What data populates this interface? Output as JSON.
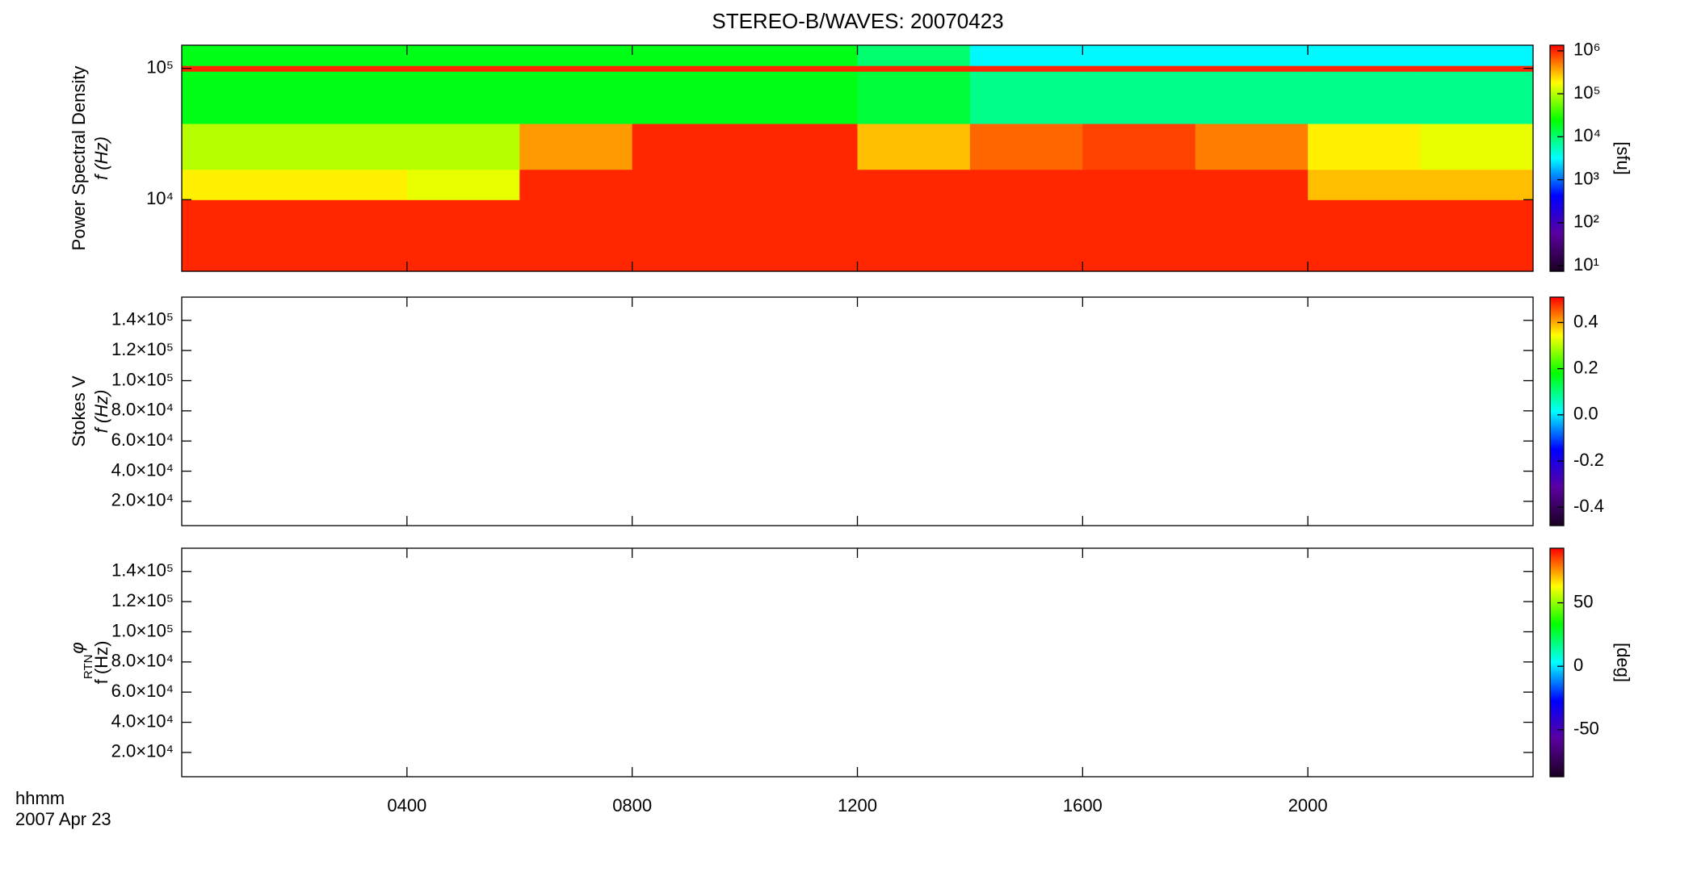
{
  "chart_data": [
    {
      "type": "heatmap",
      "title": "STEREO-B/WAVES: 20070423",
      "ylabel": [
        "Power Spectral Density",
        "f (Hz)"
      ],
      "ylog": true,
      "ylim": [
        2850,
        150000
      ],
      "yticks": [
        {
          "value": 10000,
          "label": "10⁴"
        },
        {
          "value": 100000,
          "label": "10⁵"
        }
      ],
      "x_edges": [
        0,
        2,
        4,
        6,
        8,
        10,
        12,
        14,
        16,
        18,
        20,
        22,
        24
      ],
      "y_edges": [
        2850,
        10000,
        17000,
        38000,
        95000,
        105000,
        150000
      ],
      "z": [
        [
          1000000,
          1000000,
          1000000,
          1000000,
          1000000,
          1000000,
          1000000,
          1000000,
          1000000,
          1000000,
          1000000,
          1000000
        ],
        [
          200000,
          200000,
          150000,
          1000000,
          1000000,
          1000000,
          1000000,
          1000000,
          1000000,
          1000000,
          300000,
          300000
        ],
        [
          100000,
          100000,
          100000,
          400000,
          1000000,
          1000000,
          300000,
          600000,
          800000,
          500000,
          200000,
          150000
        ],
        [
          20000,
          20000,
          20000,
          20000,
          20000,
          20000,
          15000,
          8000,
          8000,
          8000,
          8000,
          8000
        ],
        [
          1000000,
          1000000,
          1000000,
          1000000,
          1000000,
          1000000,
          1000000,
          1000000,
          1000000,
          1000000,
          1000000,
          1000000
        ],
        [
          20000,
          20000,
          20000,
          20000,
          20000,
          20000,
          10000,
          3000,
          3000,
          3000,
          3000,
          3000
        ]
      ],
      "colorscale": [
        "#1a0020",
        "#5a00a0",
        "#0000ff",
        "#00ffff",
        "#00ff00",
        "#ffff00",
        "#ff0000"
      ],
      "clog": true,
      "clim": [
        7.4,
        1350000
      ],
      "cticks": [
        {
          "value": 10,
          "label": "10¹"
        },
        {
          "value": 100,
          "label": "10²"
        },
        {
          "value": 1000,
          "label": "10³"
        },
        {
          "value": 10000,
          "label": "10⁴"
        },
        {
          "value": 100000,
          "label": "10⁵"
        },
        {
          "value": 1000000,
          "label": "10⁶"
        }
      ],
      "clabel": "[sfu]"
    },
    {
      "type": "heatmap",
      "ylabel": [
        "Stokes V",
        "f (Hz)"
      ],
      "ylim": [
        3900,
        155400
      ],
      "yticks": [
        {
          "value": 20000,
          "label": "2.0×10⁴"
        },
        {
          "value": 40000,
          "label": "4.0×10⁴"
        },
        {
          "value": 60000,
          "label": "6.0×10⁴"
        },
        {
          "value": 80000,
          "label": "8.0×10⁴"
        },
        {
          "value": 100000,
          "label": "1.0×10⁵"
        },
        {
          "value": 120000,
          "label": "1.2×10⁵"
        },
        {
          "value": 140000,
          "label": "1.4×10⁵"
        }
      ],
      "colorscale": [
        "#1a0020",
        "#5a00a0",
        "#0000ff",
        "#00ffff",
        "#00ff00",
        "#ffff00",
        "#ff0000"
      ],
      "clim": [
        -0.48,
        0.51
      ],
      "cticks": [
        -0.4,
        -0.2,
        {
          "value": 0,
          "label": "0.0"
        },
        0.2,
        0.4
      ]
    },
    {
      "type": "heatmap",
      "ylabel": [
        "φ",
        "RTN",
        "f (Hz)"
      ],
      "ylim": [
        3900,
        155400
      ],
      "yticks": [
        {
          "value": 20000,
          "label": "2.0×10⁴"
        },
        {
          "value": 40000,
          "label": "4.0×10⁴"
        },
        {
          "value": 60000,
          "label": "6.0×10⁴"
        },
        {
          "value": 80000,
          "label": "8.0×10⁴"
        },
        {
          "value": 100000,
          "label": "1.0×10⁵"
        },
        {
          "value": 120000,
          "label": "1.2×10⁵"
        },
        {
          "value": 140000,
          "label": "1.4×10⁵"
        }
      ],
      "colorscale": [
        "#1a0020",
        "#5a00a0",
        "#0000ff",
        "#00ffff",
        "#00ff00",
        "#ffff00",
        "#ff0000"
      ],
      "clim": [
        -87,
        93
      ],
      "cticks": [
        -50,
        0,
        50
      ],
      "clabel": "[deg]",
      "xlim": [
        0,
        24
      ],
      "xticks": [
        {
          "value": 4,
          "label": "0400"
        },
        {
          "value": 8,
          "label": "0800"
        },
        {
          "value": 12,
          "label": "1200"
        },
        {
          "value": 16,
          "label": "1600"
        },
        {
          "value": 20,
          "label": "2000"
        }
      ],
      "xlabel": "hhmm",
      "date": "2007 Apr 23"
    }
  ]
}
